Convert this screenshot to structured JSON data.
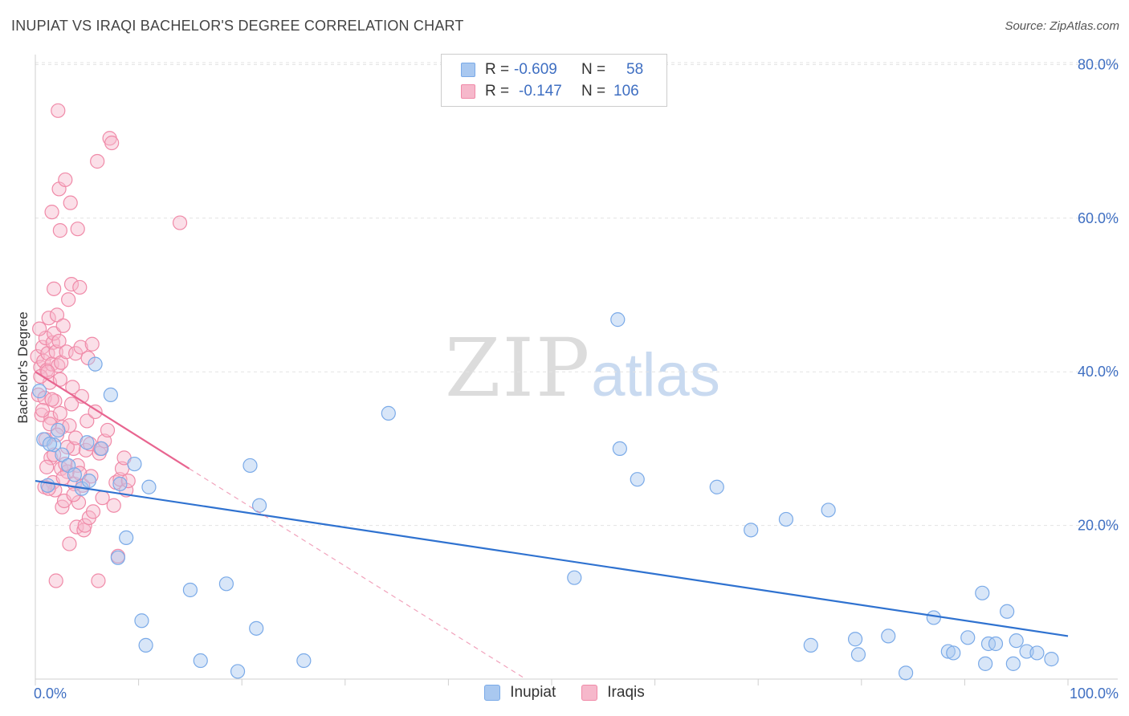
{
  "title": "INUPIAT VS IRAQI BACHELOR'S DEGREE CORRELATION CHART",
  "source": "Source: ZipAtlas.com",
  "watermark": {
    "part1": "ZIP",
    "part2": "atlas"
  },
  "colors": {
    "inupiat": "#7aaae8",
    "inupiat_fill": "#a9c8f0",
    "inupiat_line": "#2f72d0",
    "iraqis": "#f08aa8",
    "iraqis_fill": "#f6b8cb",
    "iraqis_line": "#e86590",
    "axis_text": "#3f6fc2",
    "grid": "#e3e3e3"
  },
  "legend": {
    "rows": [
      {
        "series": "Inupiat",
        "r_label": "R =",
        "r_value": "-0.609",
        "n_label": "N =",
        "n_value": "58"
      },
      {
        "series": "Iraqis",
        "r_label": "R =",
        "r_value": "-0.147",
        "n_label": "N =",
        "n_value": "106"
      }
    ]
  },
  "bottom_legend": [
    "Inupiat",
    "Iraqis"
  ],
  "chart_data": {
    "type": "scatter",
    "title": "INUPIAT VS IRAQI BACHELOR'S DEGREE CORRELATION CHART",
    "xlabel": "",
    "ylabel": "Bachelor's Degree",
    "xlim": [
      0,
      100
    ],
    "ylim": [
      0,
      82
    ],
    "x_tick_labels": [
      "0.0%",
      "100.0%"
    ],
    "y_ticks": [
      20,
      40,
      60,
      80
    ],
    "y_tick_labels": [
      "20.0%",
      "40.0%",
      "60.0%",
      "80.0%"
    ],
    "grid": true,
    "legend_position": "top-center",
    "series": [
      {
        "name": "Inupiat",
        "r": -0.609,
        "n": 58,
        "trend": {
          "x": [
            0,
            100
          ],
          "y": [
            25.8,
            5.6
          ],
          "style": "solid"
        },
        "points": [
          [
            0.4,
            37.5
          ],
          [
            0.8,
            31.2
          ],
          [
            1.2,
            25.2
          ],
          [
            1.8,
            30.5
          ],
          [
            2.2,
            32.4
          ],
          [
            2.6,
            29.2
          ],
          [
            3.2,
            27.8
          ],
          [
            3.8,
            26.6
          ],
          [
            4.5,
            24.8
          ],
          [
            5.0,
            30.8
          ],
          [
            5.8,
            41.0
          ],
          [
            6.4,
            30.0
          ],
          [
            7.3,
            37.0
          ],
          [
            8.0,
            15.8
          ],
          [
            8.2,
            25.4
          ],
          [
            8.8,
            18.4
          ],
          [
            9.6,
            28.0
          ],
          [
            10.3,
            7.6
          ],
          [
            10.7,
            4.4
          ],
          [
            11.0,
            25.0
          ],
          [
            15.0,
            11.6
          ],
          [
            16.0,
            2.4
          ],
          [
            18.5,
            12.4
          ],
          [
            19.6,
            1.0
          ],
          [
            20.8,
            27.8
          ],
          [
            21.4,
            6.6
          ],
          [
            21.7,
            22.6
          ],
          [
            26.0,
            2.4
          ],
          [
            34.2,
            34.6
          ],
          [
            52.2,
            13.2
          ],
          [
            56.4,
            46.8
          ],
          [
            56.6,
            30.0
          ],
          [
            58.3,
            26.0
          ],
          [
            66.0,
            25.0
          ],
          [
            69.3,
            19.4
          ],
          [
            72.7,
            20.8
          ],
          [
            75.1,
            4.4
          ],
          [
            76.8,
            22.0
          ],
          [
            79.4,
            5.2
          ],
          [
            79.7,
            3.2
          ],
          [
            82.6,
            5.6
          ],
          [
            84.3,
            0.8
          ],
          [
            87.0,
            8.0
          ],
          [
            88.4,
            3.6
          ],
          [
            88.9,
            3.4
          ],
          [
            90.3,
            5.4
          ],
          [
            91.7,
            11.2
          ],
          [
            92.0,
            2.0
          ],
          [
            92.3,
            4.6
          ],
          [
            93.0,
            4.6
          ],
          [
            94.1,
            8.8
          ],
          [
            94.7,
            2.0
          ],
          [
            95.0,
            5.0
          ],
          [
            96.0,
            3.6
          ],
          [
            97.0,
            3.4
          ],
          [
            98.4,
            2.6
          ],
          [
            1.4,
            30.6
          ],
          [
            5.2,
            25.8
          ]
        ]
      },
      {
        "name": "Iraqis",
        "r": -0.147,
        "n": 106,
        "trend": {
          "x": [
            0,
            14.9
          ],
          "y": [
            40.0,
            27.4
          ],
          "style": "solid",
          "extension": {
            "x": [
              14.9,
              47.5
            ],
            "y": [
              27.4,
              0.0
            ],
            "style": "dashed"
          }
        },
        "points": [
          [
            0.2,
            42.0
          ],
          [
            0.3,
            37.0
          ],
          [
            0.5,
            40.6
          ],
          [
            0.6,
            34.4
          ],
          [
            0.7,
            43.2
          ],
          [
            0.8,
            41.4
          ],
          [
            0.9,
            36.6
          ],
          [
            1.0,
            44.4
          ],
          [
            1.1,
            40.2
          ],
          [
            1.2,
            42.4
          ],
          [
            1.3,
            47.0
          ],
          [
            1.4,
            38.6
          ],
          [
            1.5,
            34.0
          ],
          [
            1.6,
            41.0
          ],
          [
            1.7,
            43.8
          ],
          [
            1.8,
            45.0
          ],
          [
            1.9,
            36.2
          ],
          [
            2.0,
            42.6
          ],
          [
            2.1,
            47.4
          ],
          [
            2.2,
            40.8
          ],
          [
            2.3,
            44.0
          ],
          [
            2.4,
            39.0
          ],
          [
            2.5,
            41.2
          ],
          [
            2.6,
            32.8
          ],
          [
            2.7,
            46.0
          ],
          [
            0.4,
            45.6
          ],
          [
            0.5,
            39.4
          ],
          [
            0.7,
            35.0
          ],
          [
            1.0,
            31.2
          ],
          [
            1.2,
            40.0
          ],
          [
            1.5,
            28.8
          ],
          [
            1.6,
            60.8
          ],
          [
            1.7,
            25.6
          ],
          [
            1.8,
            50.8
          ],
          [
            1.9,
            24.6
          ],
          [
            2.0,
            12.8
          ],
          [
            2.2,
            74.0
          ],
          [
            2.3,
            63.8
          ],
          [
            2.4,
            58.4
          ],
          [
            2.5,
            27.4
          ],
          [
            2.6,
            22.4
          ],
          [
            2.8,
            23.2
          ],
          [
            2.9,
            65.0
          ],
          [
            3.0,
            42.6
          ],
          [
            3.1,
            27.0
          ],
          [
            3.2,
            49.4
          ],
          [
            3.3,
            17.6
          ],
          [
            3.4,
            62.0
          ],
          [
            3.5,
            51.4
          ],
          [
            3.6,
            38.0
          ],
          [
            3.7,
            30.0
          ],
          [
            3.8,
            25.4
          ],
          [
            3.9,
            42.4
          ],
          [
            4.0,
            19.8
          ],
          [
            4.1,
            58.6
          ],
          [
            4.2,
            23.0
          ],
          [
            4.3,
            51.0
          ],
          [
            4.4,
            43.2
          ],
          [
            4.5,
            36.8
          ],
          [
            4.6,
            25.2
          ],
          [
            4.7,
            19.4
          ],
          [
            4.8,
            20.0
          ],
          [
            4.9,
            29.8
          ],
          [
            5.0,
            33.6
          ],
          [
            5.1,
            41.8
          ],
          [
            5.2,
            21.0
          ],
          [
            5.3,
            30.6
          ],
          [
            5.4,
            26.4
          ],
          [
            5.5,
            43.6
          ],
          [
            5.6,
            21.8
          ],
          [
            5.8,
            34.8
          ],
          [
            6.0,
            67.4
          ],
          [
            6.1,
            12.8
          ],
          [
            6.2,
            29.4
          ],
          [
            6.3,
            30.0
          ],
          [
            6.5,
            23.6
          ],
          [
            6.7,
            31.0
          ],
          [
            7.0,
            32.4
          ],
          [
            7.2,
            70.4
          ],
          [
            7.4,
            69.8
          ],
          [
            7.6,
            22.6
          ],
          [
            7.8,
            25.6
          ],
          [
            8.0,
            16.0
          ],
          [
            8.2,
            26.0
          ],
          [
            8.4,
            27.4
          ],
          [
            8.6,
            28.8
          ],
          [
            8.8,
            24.6
          ],
          [
            9.0,
            25.8
          ],
          [
            14.0,
            59.4
          ],
          [
            0.9,
            25.0
          ],
          [
            1.1,
            27.6
          ],
          [
            1.3,
            24.8
          ],
          [
            1.4,
            33.2
          ],
          [
            1.6,
            36.4
          ],
          [
            1.8,
            29.2
          ],
          [
            2.1,
            31.8
          ],
          [
            2.4,
            34.6
          ],
          [
            2.7,
            26.2
          ],
          [
            2.9,
            28.0
          ],
          [
            3.1,
            30.2
          ],
          [
            3.3,
            33.0
          ],
          [
            3.5,
            35.8
          ],
          [
            3.7,
            24.0
          ],
          [
            3.9,
            31.4
          ],
          [
            4.1,
            27.8
          ],
          [
            4.3,
            26.8
          ]
        ]
      }
    ]
  }
}
